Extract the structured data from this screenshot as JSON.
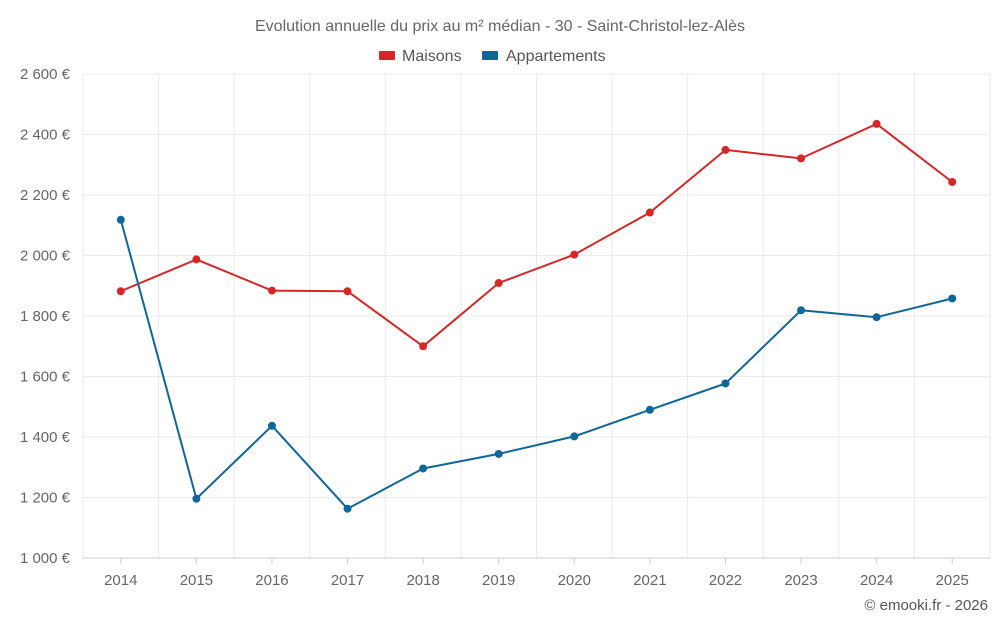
{
  "chart_data": {
    "type": "line",
    "title": "Evolution annuelle du prix au m² médian - 30 - Saint-Christol-lez-Alès",
    "x": [
      "2014",
      "2015",
      "2016",
      "2017",
      "2018",
      "2019",
      "2020",
      "2021",
      "2022",
      "2023",
      "2024",
      "2025"
    ],
    "series": [
      {
        "name": "Maisons",
        "color": "#d62728",
        "values": [
          1882,
          1987,
          1884,
          1882,
          1700,
          1909,
          2003,
          2142,
          2349,
          2321,
          2435,
          2243
        ]
      },
      {
        "name": "Appartements",
        "color": "#0f6699",
        "values": [
          2118,
          1196,
          1437,
          1163,
          1296,
          1344,
          1402,
          1490,
          1577,
          1819,
          1796,
          1858
        ]
      }
    ],
    "ylim": [
      1000,
      2600
    ],
    "yticks": [
      "2 600 €",
      "2 400 €",
      "2 200 €",
      "2 000 €",
      "1 800 €",
      "1 600 €",
      "1 400 €",
      "1 200 €",
      "1 000 €"
    ],
    "ytick_values": [
      2600,
      2400,
      2200,
      2000,
      1800,
      1600,
      1400,
      1200,
      1000
    ],
    "grid": true,
    "legend_position": "top-center",
    "credit": "© emooki.fr - 2026"
  }
}
